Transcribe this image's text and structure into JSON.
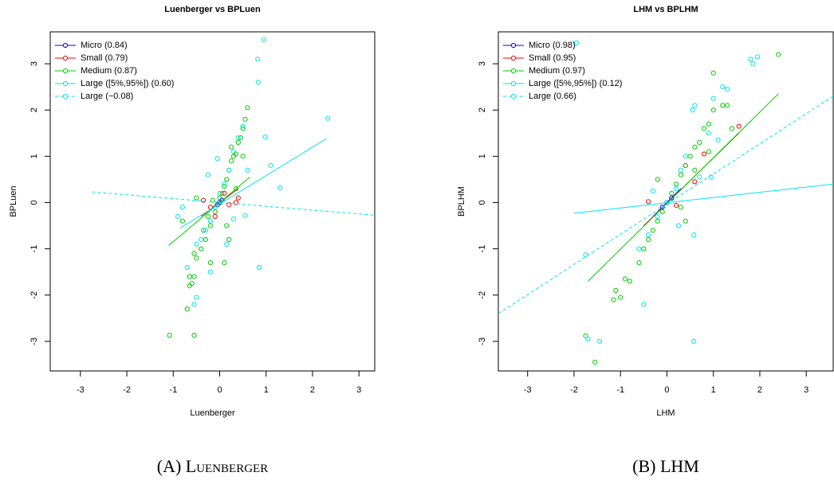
{
  "chart_data": [
    {
      "type": "scatter",
      "title": "Luenberger vs BPLuen",
      "xlabel": "Luenberger",
      "ylabel": "BPLuen",
      "caption": "(A) Luenberger",
      "xlim": [
        -3.65,
        3.34
      ],
      "ylim": [
        -3.64,
        3.69
      ],
      "xticks": [
        -3,
        -2,
        -1,
        0,
        1,
        2,
        3
      ],
      "yticks": [
        -3,
        -2,
        -1,
        0,
        1,
        2,
        3
      ],
      "legend": "top-left",
      "series": [
        {
          "name": "Micro (0.84)",
          "color": "#0000ff",
          "x": [
            0,
            0.05,
            -0.05
          ],
          "values": [
            0,
            0.05,
            -0.05
          ],
          "fit_x": [
            -0.2,
            0.2
          ],
          "fit_y": [
            -0.15,
            0.15
          ]
        },
        {
          "name": "Small (0.79)",
          "color": "#ff0000",
          "x": [
            -0.35,
            -0.2,
            0.2,
            0.35,
            0.1,
            0.4,
            -0.1
          ],
          "values": [
            0.05,
            -0.1,
            -0.05,
            0,
            0.2,
            0.1,
            -0.3
          ],
          "fit_x": [
            -0.4,
            0.4
          ],
          "fit_y": [
            -0.3,
            0.3
          ]
        },
        {
          "name": "Medium (0.87)",
          "color": "#00cd00",
          "x": [
            -1.08,
            -0.55,
            -0.7,
            -0.65,
            -0.6,
            -0.55,
            -0.65,
            -0.5,
            -0.55,
            -0.4,
            -0.3,
            -0.35,
            -0.2,
            -0.25,
            -0.1,
            -0.15,
            0,
            0.05,
            0.1,
            0.15,
            0.2,
            0.25,
            0.3,
            0.35,
            0.4,
            0.45,
            0.5,
            0.55,
            0.6,
            0.25,
            0.5,
            -0.8,
            -0.5,
            0.2,
            0.1,
            -0.2,
            0.35,
            0.15
          ],
          "values": [
            -2.87,
            -2.87,
            -2.3,
            -1.8,
            -1.75,
            -1.6,
            -1.6,
            -1.2,
            -1.1,
            -1.0,
            -0.8,
            -0.6,
            -0.5,
            -0.3,
            -0.2,
            0.05,
            0.1,
            0.2,
            0.35,
            0.5,
            0.7,
            0.9,
            1.0,
            1.05,
            1.3,
            1.4,
            1.6,
            1.8,
            2.05,
            1.2,
            1.0,
            -0.4,
            0.1,
            -0.8,
            -1.3,
            -1.3,
            0.3,
            -0.5
          ],
          "fit_x": [
            -1.1,
            0.65
          ],
          "fit_y": [
            -0.93,
            0.55
          ]
        },
        {
          "name": "Large ([5%,95%]) (0.60)",
          "color": "#00e5ee",
          "x": [
            0.95,
            0.83,
            0.82,
            2.33,
            0.98,
            1.3,
            1.1,
            0.5,
            0.4,
            0.3,
            0.2,
            0.1,
            0,
            -0.1,
            -0.2,
            -0.3,
            -0.4,
            -0.5,
            -0.7,
            -0.5,
            -0.55,
            -0.8,
            -0.9,
            0.85,
            -0.2,
            0.55,
            -0.05,
            0.6,
            0.15,
            -0.25,
            0.3
          ],
          "values": [
            3.52,
            2.6,
            3.1,
            1.82,
            1.42,
            0.32,
            0.8,
            1.65,
            1.4,
            1.1,
            0.7,
            0.4,
            0.2,
            -0.1,
            -0.4,
            -0.6,
            -0.8,
            -0.9,
            -1.4,
            -2.05,
            -2.2,
            -0.1,
            -0.3,
            -1.4,
            -1.5,
            -0.28,
            0.95,
            0.7,
            -0.9,
            0.6,
            -0.35
          ],
          "fit_x": [
            -0.85,
            2.3
          ],
          "fit_y": [
            -0.55,
            1.38
          ]
        },
        {
          "name": "Large (−0.08)",
          "color": "#00e5ee",
          "line_style": "dashed",
          "fit_x": [
            -2.75,
            3.65
          ],
          "fit_y": [
            0.23,
            -0.3
          ]
        }
      ]
    },
    {
      "type": "scatter",
      "title": "LHM vs BPLHM",
      "xlabel": "LHM",
      "ylabel": "BPLHM",
      "caption": "(B) LHM",
      "xlim": [
        -3.63,
        3.58
      ],
      "ylim": [
        -3.64,
        3.69
      ],
      "xticks": [
        -3,
        -2,
        -1,
        0,
        1,
        2,
        3
      ],
      "yticks": [
        -3,
        -2,
        -1,
        0,
        1,
        2,
        3
      ],
      "legend": "top-left",
      "series": [
        {
          "name": "Micro (0.98)",
          "color": "#0000ff",
          "x": [
            0,
            0.1,
            -0.1
          ],
          "values": [
            0,
            0.1,
            -0.1
          ],
          "fit_x": [
            -0.3,
            0.3
          ],
          "fit_y": [
            -0.3,
            0.3
          ]
        },
        {
          "name": "Small (0.95)",
          "color": "#ff0000",
          "x": [
            -0.4,
            0.2,
            0.8,
            1.55,
            0.6,
            0.4
          ],
          "values": [
            0.02,
            -0.06,
            1.05,
            1.65,
            0.45,
            0.8
          ],
          "fit_x": [
            -0.5,
            1.55
          ],
          "fit_y": [
            -0.5,
            1.5
          ]
        },
        {
          "name": "Medium (0.97)",
          "color": "#00cd00",
          "x": [
            -1.75,
            -1.55,
            -1.15,
            -1.0,
            -1.1,
            -0.8,
            -0.9,
            -0.6,
            -0.5,
            -0.4,
            -0.3,
            -0.2,
            -0.1,
            0,
            0.1,
            0.2,
            0.3,
            0.4,
            0.5,
            0.6,
            0.7,
            0.8,
            0.9,
            1.0,
            1.2,
            1.3,
            1.0,
            2.4,
            0.9,
            0.6,
            0.3,
            -0.2,
            0.4,
            1.4
          ],
          "values": [
            -2.88,
            -3.45,
            -2.1,
            -2.05,
            -1.9,
            -1.7,
            -1.65,
            -1.3,
            -1.0,
            -0.8,
            -0.6,
            -0.4,
            -0.2,
            0,
            0.2,
            0.4,
            0.6,
            0.8,
            1.0,
            1.2,
            1.3,
            1.6,
            1.7,
            2.0,
            2.1,
            2.1,
            2.8,
            3.2,
            1.1,
            0.7,
            -0.1,
            0.5,
            -0.4,
            1.6
          ],
          "fit_x": [
            -1.7,
            2.4
          ],
          "fit_y": [
            -1.7,
            2.35
          ]
        },
        {
          "name": "Large ([5%,95%]) (0.12)",
          "color": "#00e5ee",
          "x": [
            -1.95,
            1.8,
            1.85,
            1.95,
            1.2,
            1.3,
            1.0,
            1.1,
            0.6,
            0.55,
            0.9,
            0.4,
            0.3,
            0.2,
            0,
            -0.2,
            -0.4,
            -0.6,
            -1.75,
            -1.7,
            -1.45,
            0.58,
            -0.5,
            0.58,
            0.95,
            0.25,
            -0.3,
            0.7
          ],
          "values": [
            3.45,
            3.1,
            3.0,
            3.15,
            2.5,
            2.45,
            2.25,
            1.35,
            2.1,
            2.0,
            1.5,
            1.0,
            0.7,
            0.3,
            0,
            -0.3,
            -0.7,
            -1.0,
            -1.13,
            -2.95,
            -3.0,
            -3.0,
            -2.2,
            -0.7,
            0.55,
            -0.5,
            0.25,
            0.55
          ],
          "fit_x": [
            -2.0,
            3.58
          ],
          "fit_y": [
            -0.23,
            0.4
          ]
        },
        {
          "name": "Large (0.66)",
          "color": "#00e5ee",
          "line_style": "dashed",
          "fit_x": [
            -3.63,
            3.58
          ],
          "fit_y": [
            -2.4,
            2.3
          ]
        }
      ]
    }
  ]
}
